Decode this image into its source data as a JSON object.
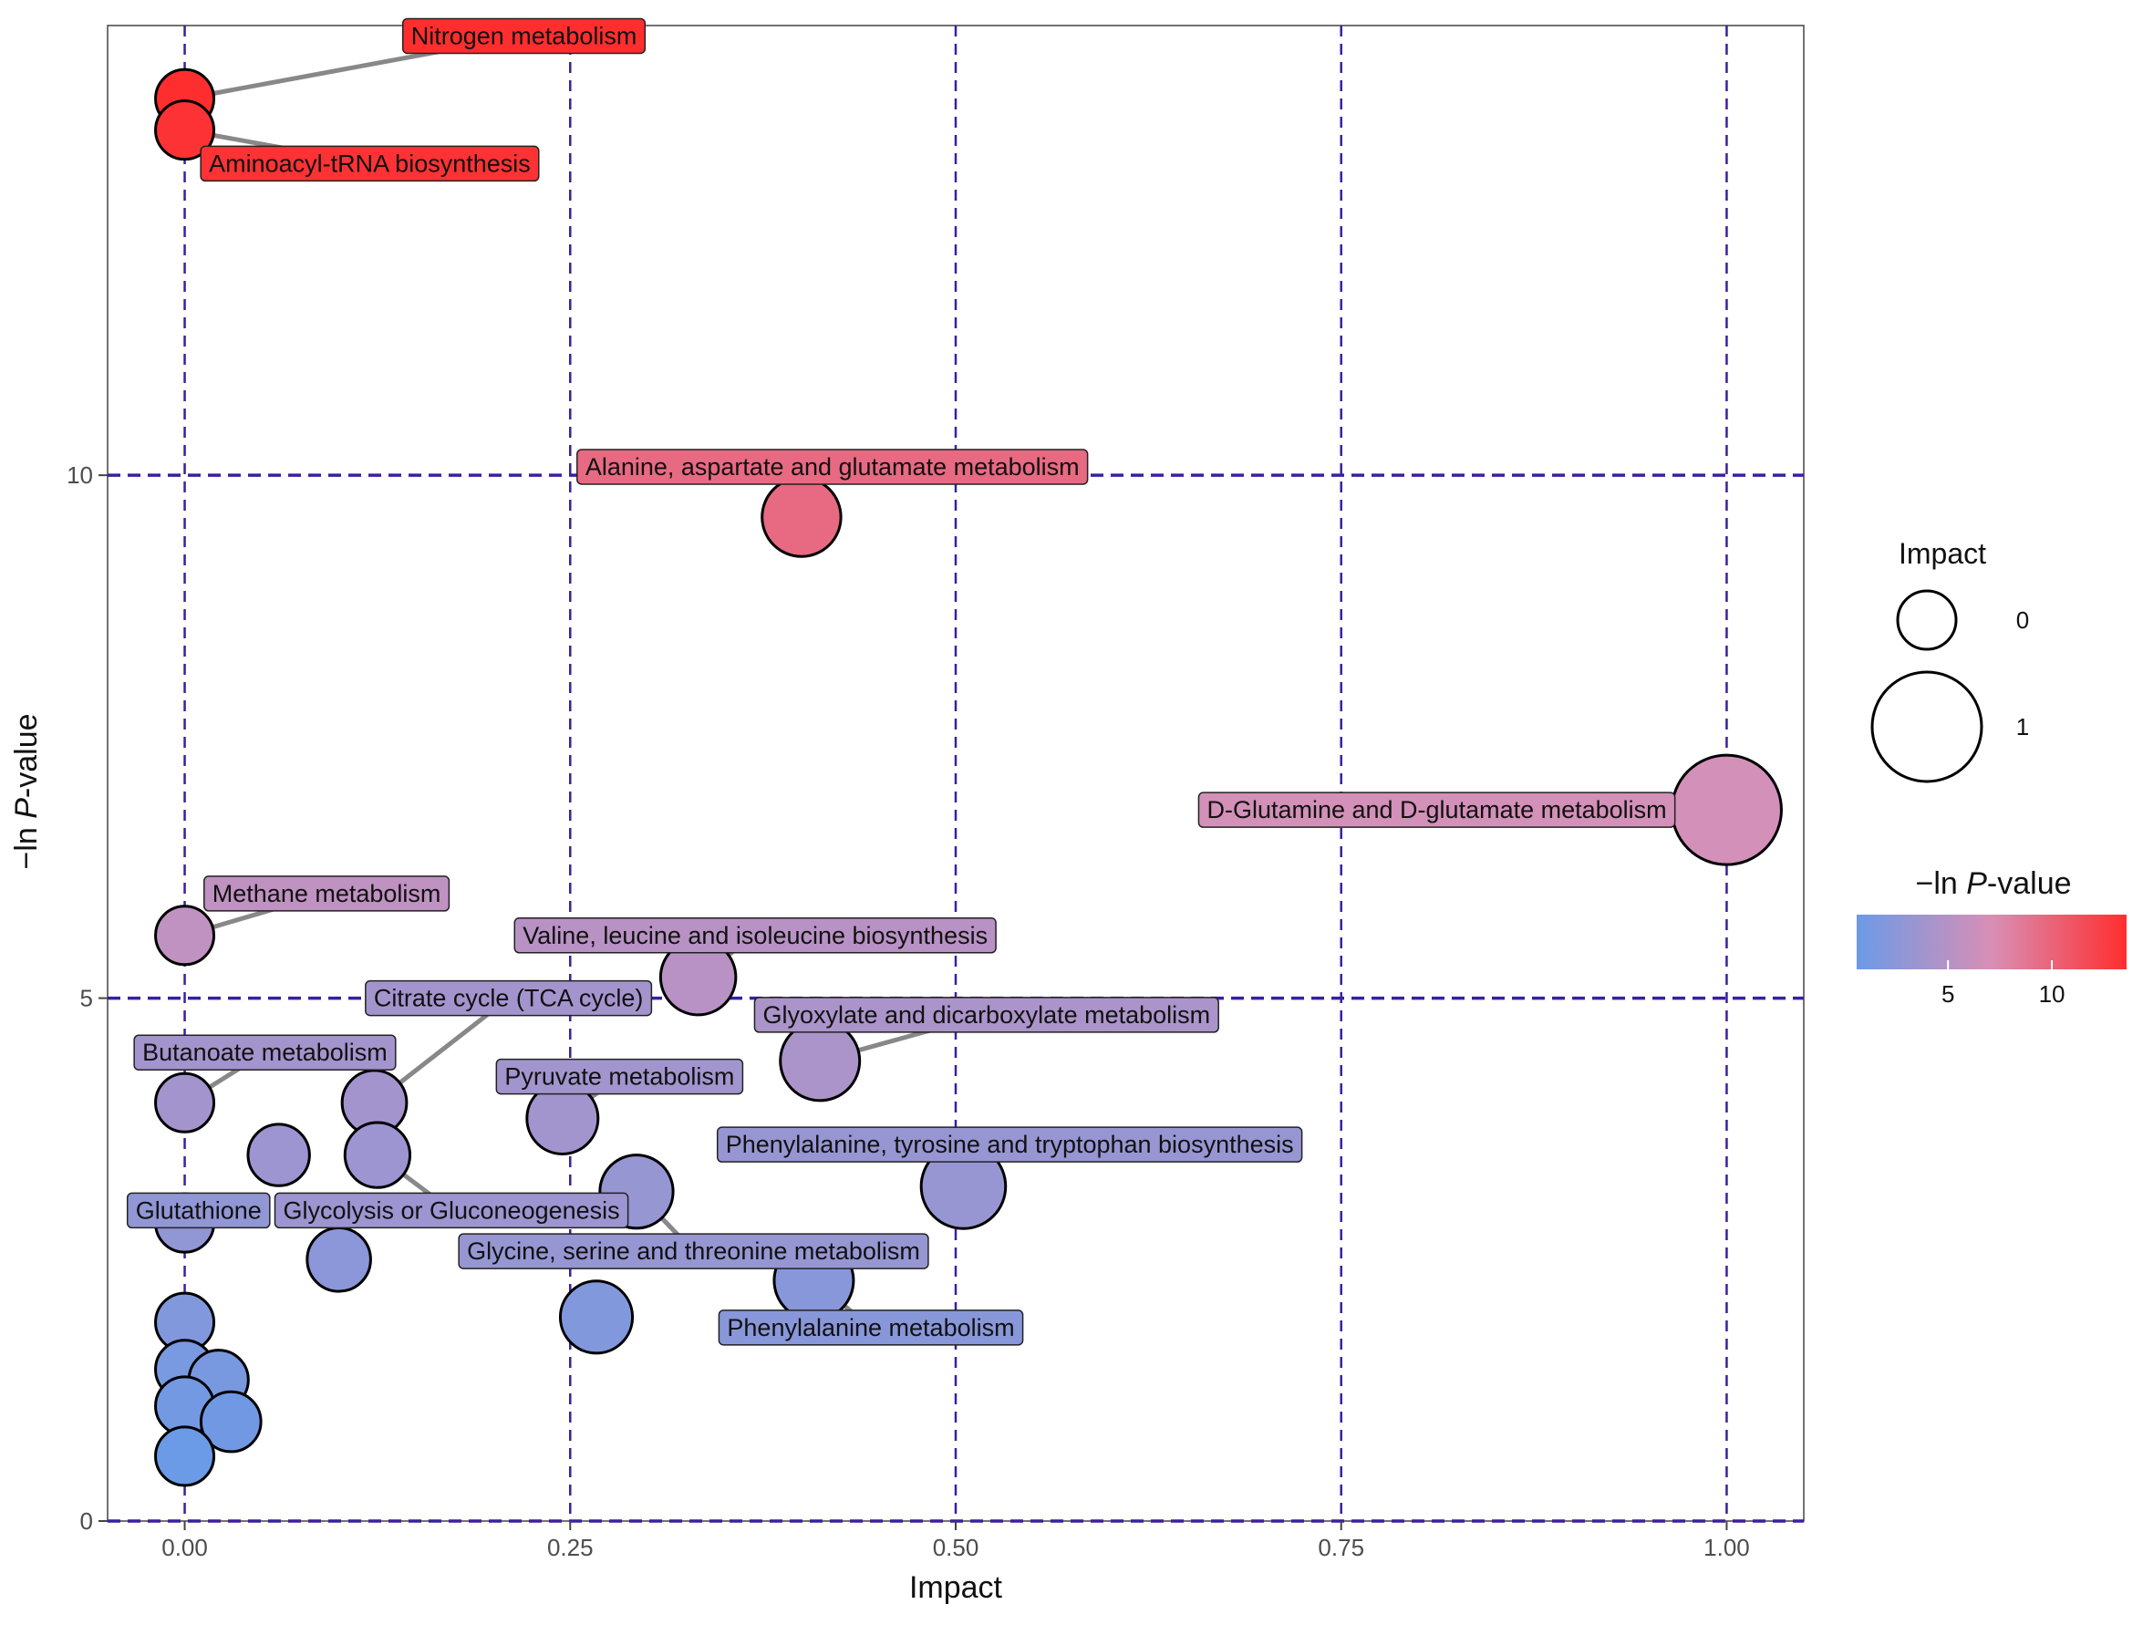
{
  "chart_data": {
    "type": "scatter",
    "xlabel": "Impact",
    "ylabel_prefix": "−ln ",
    "ylabel_italic": "P",
    "ylabel_suffix": "-value",
    "xlim": [
      -0.05,
      1.05
    ],
    "ylim": [
      0,
      14.3
    ],
    "x_ticks": [
      0,
      0.25,
      0.5,
      0.75,
      1.0
    ],
    "x_tick_labels": [
      "0.00",
      "0.25",
      "0.50",
      "0.75",
      "1.00"
    ],
    "y_ticks": [
      0,
      5,
      10
    ],
    "y_tick_labels": [
      "0",
      "5",
      "10"
    ],
    "color_scale": {
      "low": "#6b9ae6",
      "mid": "#d88fb6",
      "high": "#ff2e2e",
      "min": 0.6,
      "max": 13.6
    },
    "points": [
      {
        "x": 0.0,
        "y": 13.6,
        "impact": 0.0,
        "label": "Nitrogen metabolism",
        "label_pos": [
          0.22,
          14.2
        ]
      },
      {
        "x": 0.0,
        "y": 13.3,
        "impact": 0.0,
        "label": "Aminoacyl-tRNA biosynthesis",
        "label_pos": [
          0.12,
          12.98
        ]
      },
      {
        "x": 0.4,
        "y": 9.6,
        "impact": 0.4,
        "label": "Alanine, aspartate and glutamate metabolism",
        "label_pos": [
          0.42,
          10.08
        ]
      },
      {
        "x": 1.0,
        "y": 6.8,
        "impact": 1.0,
        "label": "D-Glutamine and D-glutamate metabolism",
        "label_pos": [
          0.812,
          6.8
        ]
      },
      {
        "x": 0.0,
        "y": 5.6,
        "impact": 0.0,
        "label": "Methane metabolism",
        "label_pos": [
          0.092,
          6.0
        ]
      },
      {
        "x": 0.333,
        "y": 5.2,
        "impact": 0.33,
        "label": "Valine, leucine and isoleucine biosynthesis",
        "label_pos": [
          0.37,
          5.6
        ]
      },
      {
        "x": 0.123,
        "y": 4.0,
        "impact": 0.12,
        "label": "Citrate cycle (TCA cycle)",
        "label_pos": [
          0.21,
          5.0
        ]
      },
      {
        "x": 0.412,
        "y": 4.4,
        "impact": 0.41,
        "label": "Glyoxylate and dicarboxylate metabolism",
        "label_pos": [
          0.52,
          4.84
        ]
      },
      {
        "x": 0.0,
        "y": 4.0,
        "impact": 0.0,
        "label": "Butanoate metabolism",
        "label_pos": [
          0.052,
          4.48
        ]
      },
      {
        "x": 0.245,
        "y": 3.85,
        "impact": 0.25,
        "label": "Pyruvate metabolism",
        "label_pos": [
          0.282,
          4.25
        ]
      },
      {
        "x": 0.505,
        "y": 3.2,
        "impact": 0.51,
        "label": "Phenylalanine, tyrosine and tryptophan biosynthesis",
        "label_pos": [
          0.535,
          3.6
        ]
      },
      {
        "x": 0.125,
        "y": 3.5,
        "impact": 0.13,
        "label": "Glycolysis or Gluconeogenesis",
        "label_pos": [
          0.173,
          2.97
        ]
      },
      {
        "x": 0.0,
        "y": 2.85,
        "impact": 0.0,
        "label": "Glutathione",
        "label_pos": [
          0.009,
          2.97
        ]
      },
      {
        "x": 0.293,
        "y": 3.15,
        "impact": 0.29,
        "label": "Glycine, serine and threonine metabolism",
        "label_pos": [
          0.33,
          2.58
        ]
      },
      {
        "x": 0.408,
        "y": 2.3,
        "impact": 0.41,
        "label": "Phenylalanine metabolism",
        "label_pos": [
          0.445,
          1.85
        ]
      },
      {
        "x": 0.061,
        "y": 3.5,
        "impact": 0.06
      },
      {
        "x": 0.1,
        "y": 2.5,
        "impact": 0.1
      },
      {
        "x": 0.267,
        "y": 1.95,
        "impact": 0.27
      },
      {
        "x": 0.0,
        "y": 1.9,
        "impact": 0.0
      },
      {
        "x": 0.0,
        "y": 1.45,
        "impact": 0.0
      },
      {
        "x": 0.022,
        "y": 1.35,
        "impact": 0.02
      },
      {
        "x": 0.0,
        "y": 1.1,
        "impact": 0.0
      },
      {
        "x": 0.03,
        "y": 0.95,
        "impact": 0.03
      },
      {
        "x": 0.0,
        "y": 0.62,
        "impact": 0.0
      }
    ],
    "legend_size": {
      "title": "Impact",
      "items": [
        {
          "label": "0",
          "impact": 0
        },
        {
          "label": "1",
          "impact": 1
        }
      ]
    },
    "legend_color": {
      "title_prefix": "−ln ",
      "title_italic": "P",
      "title_suffix": "-value",
      "ticks": [
        {
          "label": "5",
          "value": 5
        },
        {
          "label": "10",
          "value": 10
        }
      ]
    }
  }
}
